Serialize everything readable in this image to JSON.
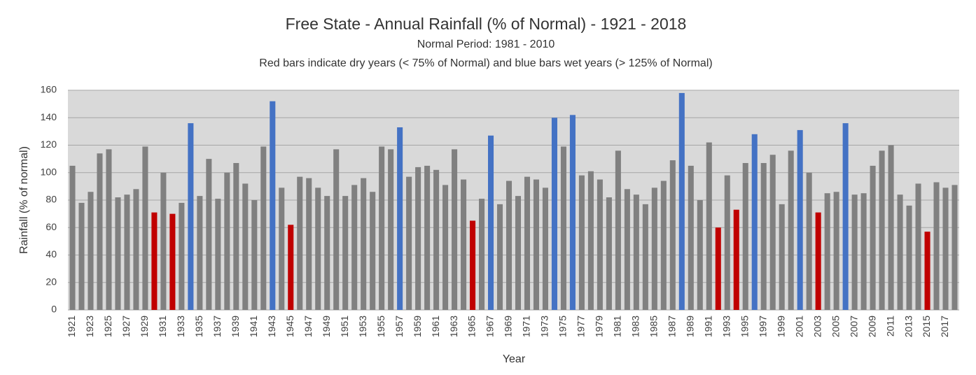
{
  "chart_data": {
    "type": "bar",
    "title": "Free State - Annual Rainfall (% of Normal) - 1921 - 2018",
    "subtitles": [
      "Normal Period: 1981 - 2010",
      "Red bars indicate dry years (< 75% of Normal) and blue bars wet years (> 125% of Normal)"
    ],
    "x_label": "Year",
    "y_label": "Rainfall (% of normal)",
    "categories": [
      "1921",
      null,
      "1923",
      null,
      "1925",
      null,
      "1927",
      null,
      "1929",
      null,
      "1931",
      null,
      "1933",
      null,
      "1935",
      null,
      "1937",
      null,
      "1939",
      null,
      "1941",
      null,
      "1943",
      null,
      "1945",
      null,
      "1947",
      null,
      "1949",
      null,
      "1951",
      null,
      "1953",
      null,
      "1955",
      null,
      "1957",
      null,
      "1959",
      null,
      "1961",
      null,
      "1963",
      null,
      "1965",
      null,
      "1967",
      null,
      "1969",
      null,
      "1971",
      null,
      "1973",
      null,
      "1975",
      null,
      "1977",
      null,
      "1979",
      null,
      "1981",
      null,
      "1983",
      null,
      "1985",
      null,
      "1987",
      null,
      "1989",
      null,
      "1991",
      null,
      "1993",
      null,
      "1995",
      null,
      "1997",
      null,
      "1999",
      null,
      "2001",
      null,
      "2003",
      null,
      "2005",
      null,
      "2007",
      null,
      "2009",
      null,
      "2011",
      null,
      "2013",
      null,
      "2015",
      null,
      "2017",
      null
    ],
    "values": [
      105,
      78,
      86,
      114,
      117,
      82,
      84,
      88,
      119,
      71,
      100,
      70,
      78,
      136,
      83,
      110,
      81,
      100,
      107,
      92,
      80,
      119,
      152,
      89,
      62,
      97,
      96,
      89,
      83,
      117,
      83,
      91,
      96,
      86,
      119,
      117,
      133,
      97,
      104,
      105,
      102,
      91,
      117,
      95,
      65,
      81,
      127,
      77,
      94,
      83,
      97,
      95,
      89,
      140,
      119,
      142,
      98,
      101,
      95,
      82,
      116,
      88,
      84,
      77,
      89,
      94,
      109,
      158,
      105,
      80,
      122,
      60,
      98,
      73,
      107,
      128,
      107,
      113,
      77,
      116,
      131,
      100,
      71,
      85,
      86,
      136,
      84,
      85,
      105,
      116,
      120,
      84,
      76,
      92,
      57,
      93,
      89,
      91
    ],
    "colors": [
      "#808080",
      "#808080",
      "#808080",
      "#808080",
      "#808080",
      "#808080",
      "#808080",
      "#808080",
      "#808080",
      "#c00000",
      "#808080",
      "#c00000",
      "#808080",
      "#4472c4",
      "#808080",
      "#808080",
      "#808080",
      "#808080",
      "#808080",
      "#808080",
      "#808080",
      "#808080",
      "#4472c4",
      "#808080",
      "#c00000",
      "#808080",
      "#808080",
      "#808080",
      "#808080",
      "#808080",
      "#808080",
      "#808080",
      "#808080",
      "#808080",
      "#808080",
      "#808080",
      "#4472c4",
      "#808080",
      "#808080",
      "#808080",
      "#808080",
      "#808080",
      "#808080",
      "#808080",
      "#c00000",
      "#808080",
      "#4472c4",
      "#808080",
      "#808080",
      "#808080",
      "#808080",
      "#808080",
      "#808080",
      "#4472c4",
      "#808080",
      "#4472c4",
      "#808080",
      "#808080",
      "#808080",
      "#808080",
      "#808080",
      "#808080",
      "#808080",
      "#808080",
      "#808080",
      "#808080",
      "#808080",
      "#4472c4",
      "#808080",
      "#808080",
      "#808080",
      "#c00000",
      "#808080",
      "#c00000",
      "#808080",
      "#4472c4",
      "#808080",
      "#808080",
      "#808080",
      "#808080",
      "#4472c4",
      "#808080",
      "#c00000",
      "#808080",
      "#808080",
      "#4472c4",
      "#808080",
      "#808080",
      "#808080",
      "#808080",
      "#808080",
      "#808080",
      "#808080",
      "#808080",
      "#c00000",
      "#808080",
      "#808080",
      "#808080"
    ],
    "ylim": [
      0,
      160
    ],
    "yticks": [
      0,
      20,
      40,
      60,
      80,
      100,
      120,
      140,
      160
    ],
    "grid": true
  }
}
